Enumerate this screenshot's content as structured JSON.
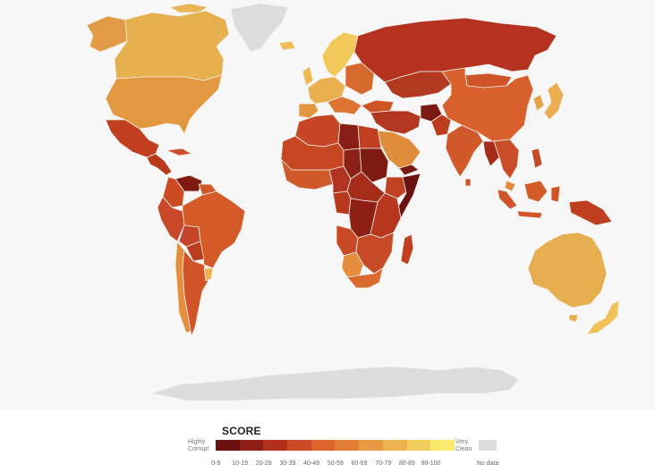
{
  "legend": {
    "title": "SCORE",
    "low_label": "Highly Corrupt",
    "high_label": "Very Clean",
    "no_data_label": "No data",
    "ranges": [
      "0-9",
      "10-19",
      "20-29",
      "30-39",
      "40-49",
      "50-59",
      "60-69",
      "70-79",
      "80-89",
      "90-100"
    ],
    "colors": [
      "#6b1111",
      "#8e1f16",
      "#b2311d",
      "#cc4a24",
      "#d9652d",
      "#e27e36",
      "#e99844",
      "#eeb251",
      "#f3cc5e",
      "#f9ea6e"
    ],
    "no_data_color": "#dcdcdc"
  },
  "map": {
    "regions": [
      {
        "name": "greenland",
        "score_band": "no-data",
        "color": "#dcdcdc"
      },
      {
        "name": "canada",
        "score_band": "70-79",
        "color": "#e7b04e"
      },
      {
        "name": "alaska",
        "score_band": "60-69",
        "color": "#e39a45"
      },
      {
        "name": "united-states",
        "score_band": "60-69",
        "color": "#e3973f"
      },
      {
        "name": "mexico",
        "score_band": "20-29",
        "color": "#c2401f"
      },
      {
        "name": "central-america",
        "score_band": "20-29",
        "color": "#b83a1d"
      },
      {
        "name": "venezuela",
        "score_band": "10-19",
        "color": "#7e1a12"
      },
      {
        "name": "colombia",
        "score_band": "30-39",
        "color": "#cc4a24"
      },
      {
        "name": "brazil",
        "score_band": "30-39",
        "color": "#d45a28"
      },
      {
        "name": "peru-bolivia",
        "score_band": "30-39",
        "color": "#c9482a"
      },
      {
        "name": "argentina",
        "score_band": "30-39",
        "color": "#d15429"
      },
      {
        "name": "chile",
        "score_band": "60-69",
        "color": "#e48f3d"
      },
      {
        "name": "uruguay",
        "score_band": "70-79",
        "color": "#eab050"
      },
      {
        "name": "scandinavia",
        "score_band": "80-89",
        "color": "#f2c85a"
      },
      {
        "name": "western-europe",
        "score_band": "70-79",
        "color": "#eab050"
      },
      {
        "name": "southern-europe",
        "score_band": "40-49",
        "color": "#dd7432"
      },
      {
        "name": "russia",
        "score_band": "20-29",
        "color": "#b4321e"
      },
      {
        "name": "central-asia",
        "score_band": "20-29",
        "color": "#b23a20"
      },
      {
        "name": "middle-east",
        "score_band": "20-29",
        "color": "#b33620"
      },
      {
        "name": "saudi-arabia",
        "score_band": "50-59",
        "color": "#e08d3b"
      },
      {
        "name": "afghanistan",
        "score_band": "10-19",
        "color": "#7a1a12"
      },
      {
        "name": "china",
        "score_band": "40-49",
        "color": "#d7602c"
      },
      {
        "name": "mongolia",
        "score_band": "30-39",
        "color": "#cf5427"
      },
      {
        "name": "india",
        "score_band": "30-39",
        "color": "#d2592a"
      },
      {
        "name": "southeast-asia",
        "score_band": "30-39",
        "color": "#c94d26"
      },
      {
        "name": "japan",
        "score_band": "70-79",
        "color": "#ebad4f"
      },
      {
        "name": "indonesia",
        "score_band": "30-39",
        "color": "#cf5427"
      },
      {
        "name": "papua-new-guinea",
        "score_band": "20-29",
        "color": "#bd3e20"
      },
      {
        "name": "australia",
        "score_band": "70-79",
        "color": "#e6ae4e"
      },
      {
        "name": "new-zealand",
        "score_band": "80-89",
        "color": "#f0c35a"
      },
      {
        "name": "north-africa",
        "score_band": "30-39",
        "color": "#c54524"
      },
      {
        "name": "libya",
        "score_band": "10-19",
        "color": "#8a1e14"
      },
      {
        "name": "west-africa",
        "score_band": "30-39",
        "color": "#c74723"
      },
      {
        "name": "sudan",
        "score_band": "10-19",
        "color": "#7f1a12"
      },
      {
        "name": "central-africa",
        "score_band": "20-29",
        "color": "#a52d1a"
      },
      {
        "name": "dr-congo",
        "score_band": "10-19",
        "color": "#8e2016"
      },
      {
        "name": "east-africa",
        "score_band": "20-29",
        "color": "#b8381f"
      },
      {
        "name": "somalia",
        "score_band": "0-9",
        "color": "#6b1111"
      },
      {
        "name": "southern-africa",
        "score_band": "30-39",
        "color": "#c84a24"
      },
      {
        "name": "botswana-namibia",
        "score_band": "50-59",
        "color": "#e38d3d"
      },
      {
        "name": "south-africa",
        "score_band": "40-49",
        "color": "#db6a2f"
      },
      {
        "name": "madagascar",
        "score_band": "20-29",
        "color": "#c2401f"
      },
      {
        "name": "antarctica",
        "score_band": "no-data",
        "color": "#dcdcdc"
      }
    ]
  }
}
